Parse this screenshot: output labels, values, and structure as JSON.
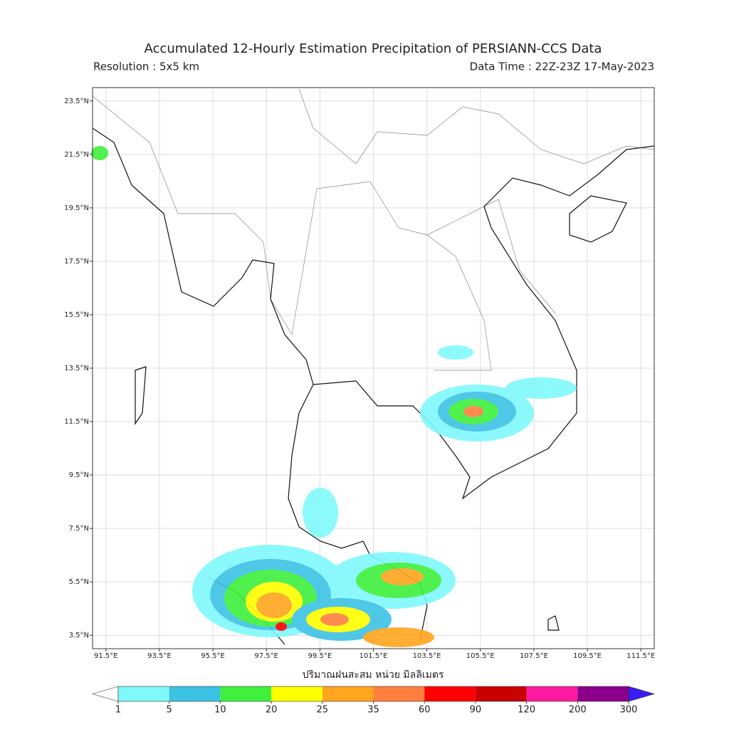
{
  "header": {
    "title": "Accumulated 12-Hourly Estimation Precipitation of PERSIANN-CCS Data",
    "resolution": "Resolution : 5x5 km",
    "data_time": "Data Time : 22Z-23Z 17-May-2023"
  },
  "map": {
    "xlim": [
      91,
      112
    ],
    "ylim": [
      3,
      24
    ],
    "xticks": [
      {
        "value": 91.5,
        "label": "91.5°E"
      },
      {
        "value": 93.5,
        "label": "93.5°E"
      },
      {
        "value": 95.5,
        "label": "95.5°E"
      },
      {
        "value": 97.5,
        "label": "97.5°E"
      },
      {
        "value": 99.5,
        "label": "99.5°E"
      },
      {
        "value": 101.5,
        "label": "101.5°E"
      },
      {
        "value": 103.5,
        "label": "103.5°E"
      },
      {
        "value": 105.5,
        "label": "105.5°E"
      },
      {
        "value": 107.5,
        "label": "107.5°E"
      },
      {
        "value": 109.5,
        "label": "109.5°E"
      },
      {
        "value": 111.5,
        "label": "111.5°E"
      }
    ],
    "yticks": [
      {
        "value": 23.5,
        "label": "23.5°N"
      },
      {
        "value": 21.5,
        "label": "21.5°N"
      },
      {
        "value": 19.5,
        "label": "19.5°N"
      },
      {
        "value": 17.5,
        "label": "17.5°N"
      },
      {
        "value": 15.5,
        "label": "15.5°N"
      },
      {
        "value": 13.5,
        "label": "13.5°N"
      },
      {
        "value": 11.5,
        "label": "11.5°N"
      },
      {
        "value": 9.5,
        "label": "9.5°N"
      },
      {
        "value": 7.5,
        "label": "7.5°N"
      },
      {
        "value": 5.5,
        "label": "5.5°N"
      },
      {
        "value": 3.5,
        "label": "3.5°N"
      }
    ],
    "grid": true
  },
  "colorbar": {
    "label": "ปริมาณฝนสะสม หน่วย มิลลิเมตร",
    "ticks": [
      1,
      5,
      10,
      20,
      25,
      35,
      60,
      90,
      120,
      200,
      300
    ],
    "colors": [
      "#7ff9fb",
      "#3cc2e5",
      "#3ef03c",
      "#ffff00",
      "#ffa51e",
      "#ff7f3f",
      "#ff0000",
      "#c80000",
      "#ff1aa0",
      "#8b008b"
    ],
    "under_color": "#ffffff",
    "over_color": "#3b1cf5"
  }
}
